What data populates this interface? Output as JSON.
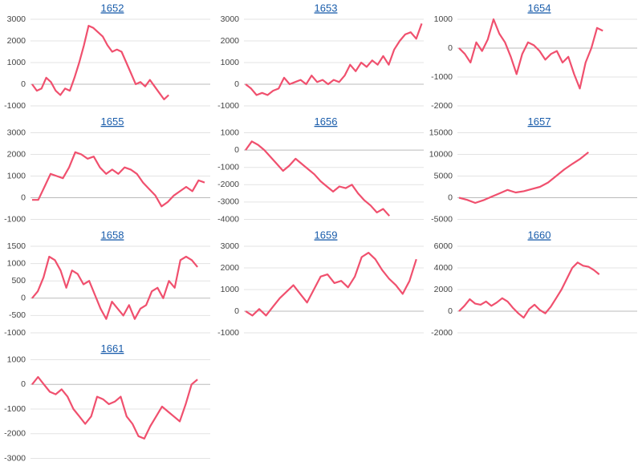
{
  "chart_data": [
    {
      "type": "line",
      "title": "1652",
      "color": "#f0506e",
      "ylim": [
        -1000,
        3000
      ],
      "yticks": [
        3000,
        2000,
        1000,
        0,
        -1000
      ],
      "grid": true,
      "values": [
        0,
        -300,
        -200,
        300,
        100,
        -300,
        -500,
        -200,
        -300,
        300,
        1000,
        1800,
        2700,
        2600,
        2400,
        2200,
        1800,
        1500,
        1600,
        1500,
        1000,
        500,
        0,
        100,
        -100,
        200,
        -100,
        -400,
        -700,
        -500
      ]
    },
    {
      "type": "line",
      "title": "1653",
      "color": "#f0506e",
      "ylim": [
        -1000,
        3000
      ],
      "yticks": [
        3000,
        2000,
        1000,
        0,
        -1000
      ],
      "grid": true,
      "values": [
        0,
        -200,
        -500,
        -400,
        -500,
        -300,
        -200,
        300,
        0,
        100,
        200,
        0,
        400,
        100,
        200,
        0,
        200,
        100,
        400,
        900,
        600,
        1000,
        800,
        1100,
        900,
        1300,
        900,
        1600,
        2000,
        2300,
        2400,
        2100,
        2800
      ]
    },
    {
      "type": "line",
      "title": "1654",
      "color": "#f0506e",
      "ylim": [
        -2000,
        1000
      ],
      "yticks": [
        1000,
        0,
        -1000,
        -2000
      ],
      "grid": true,
      "values": [
        0,
        -200,
        -500,
        200,
        -100,
        300,
        1000,
        500,
        200,
        -300,
        -900,
        -200,
        200,
        100,
        -100,
        -400,
        -200,
        -100,
        -500,
        -300,
        -900,
        -1400,
        -500,
        0,
        700,
        600
      ]
    },
    {
      "type": "line",
      "title": "1655",
      "color": "#f0506e",
      "ylim": [
        -1000,
        3000
      ],
      "yticks": [
        3000,
        2000,
        1000,
        0,
        -1000
      ],
      "grid": true,
      "values": [
        -100,
        -100,
        500,
        1100,
        1000,
        900,
        1400,
        2100,
        2000,
        1800,
        1900,
        1400,
        1100,
        1300,
        1100,
        1400,
        1300,
        1100,
        700,
        400,
        100,
        -400,
        -200,
        100,
        300,
        500,
        300,
        800,
        700
      ]
    },
    {
      "type": "line",
      "title": "1656",
      "color": "#f0506e",
      "ylim": [
        -4000,
        1000
      ],
      "yticks": [
        1000,
        0,
        -1000,
        -2000,
        -3000,
        -4000
      ],
      "grid": true,
      "values": [
        0,
        500,
        300,
        0,
        -400,
        -800,
        -1200,
        -900,
        -500,
        -800,
        -1100,
        -1400,
        -1800,
        -2100,
        -2400,
        -2100,
        -2200,
        -2000,
        -2500,
        -2900,
        -3200,
        -3600,
        -3400,
        -3800
      ]
    },
    {
      "type": "line",
      "title": "1657",
      "color": "#f0506e",
      "ylim": [
        -5000,
        15000
      ],
      "yticks": [
        15000,
        10000,
        5000,
        0,
        -5000
      ],
      "grid": true,
      "values": [
        0,
        -500,
        -1200,
        -600,
        200,
        1000,
        1800,
        1200,
        1500,
        2000,
        2500,
        3500,
        5000,
        6500,
        7800,
        9000,
        10500
      ]
    },
    {
      "type": "line",
      "title": "1658",
      "color": "#f0506e",
      "ylim": [
        -1000,
        1500
      ],
      "yticks": [
        1500,
        1000,
        500,
        0,
        -500,
        -1000
      ],
      "grid": true,
      "values": [
        0,
        200,
        600,
        1200,
        1100,
        800,
        300,
        800,
        700,
        400,
        500,
        100,
        -300,
        -600,
        -100,
        -300,
        -500,
        -200,
        -600,
        -300,
        -200,
        200,
        300,
        0,
        500,
        300,
        1100,
        1200,
        1100,
        900
      ]
    },
    {
      "type": "line",
      "title": "1659",
      "color": "#f0506e",
      "ylim": [
        -1000,
        3000
      ],
      "yticks": [
        3000,
        2000,
        1000,
        0,
        -1000
      ],
      "grid": true,
      "values": [
        0,
        -200,
        100,
        -200,
        200,
        600,
        900,
        1200,
        800,
        400,
        1000,
        1600,
        1700,
        1300,
        1400,
        1100,
        1600,
        2500,
        2700,
        2400,
        1900,
        1500,
        1200,
        800,
        1400,
        2400
      ]
    },
    {
      "type": "line",
      "title": "1660",
      "color": "#f0506e",
      "ylim": [
        -2000,
        6000
      ],
      "yticks": [
        6000,
        4000,
        2000,
        0,
        -2000
      ],
      "grid": true,
      "values": [
        0,
        500,
        1100,
        700,
        600,
        900,
        500,
        800,
        1200,
        900,
        300,
        -200,
        -600,
        200,
        600,
        100,
        -200,
        400,
        1200,
        2000,
        3000,
        4000,
        4500,
        4200,
        4100,
        3800,
        3400
      ]
    },
    {
      "type": "line",
      "title": "1661",
      "color": "#f0506e",
      "ylim": [
        -3000,
        1000
      ],
      "yticks": [
        1000,
        0,
        -1000,
        -2000,
        -3000
      ],
      "grid": true,
      "values": [
        0,
        300,
        0,
        -300,
        -400,
        -200,
        -500,
        -1000,
        -1300,
        -1600,
        -1300,
        -500,
        -600,
        -800,
        -700,
        -500,
        -1300,
        -1600,
        -2100,
        -2200,
        -1700,
        -1300,
        -900,
        -1100,
        -1300,
        -1500,
        -800,
        0,
        200
      ]
    }
  ]
}
